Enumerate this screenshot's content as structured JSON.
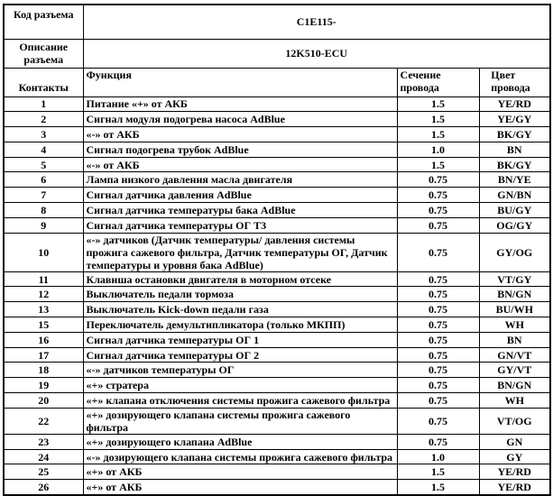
{
  "header": {
    "code_label": "Код разъема",
    "code_value": "C1E115-",
    "desc_label": "Описание разъема",
    "desc_value": "12K510-ECU",
    "contacts_label": "Контакты",
    "col_function": "Функция",
    "col_section": "Сечение провода",
    "col_color": "Цвет провода"
  },
  "rows": [
    {
      "pin": "1",
      "function": "Питание «+» от АКБ",
      "section": "1.5",
      "color": "YE/RD"
    },
    {
      "pin": "2",
      "function": "Сигнал модуля подогрева насоса AdBlue",
      "section": "1.5",
      "color": "YE/GY"
    },
    {
      "pin": "3",
      "function": "«-» от АКБ",
      "section": "1.5",
      "color": "BK/GY"
    },
    {
      "pin": "4",
      "function": "Сигнал подогрева трубок AdBlue",
      "section": "1.0",
      "color": "BN"
    },
    {
      "pin": "5",
      "function": "«-» от АКБ",
      "section": "1.5",
      "color": "BK/GY"
    },
    {
      "pin": "6",
      "function": "Лампа низкого давления масла двигателя",
      "section": "0.75",
      "color": "BN/YE"
    },
    {
      "pin": "7",
      "function": "Сигнал датчика давления AdBlue",
      "section": "0.75",
      "color": "GN/BN"
    },
    {
      "pin": "8",
      "function": "Сигнал датчика температуры бака AdBlue",
      "section": "0.75",
      "color": "BU/GY"
    },
    {
      "pin": "9",
      "function": "Сигнал датчика температуры ОГ Т3",
      "section": "0.75",
      "color": "OG/GY"
    },
    {
      "pin": "10",
      "function": "«-» датчиков (Датчик температуры/ давления системы прожига сажевого фильтра, Датчик температуры ОГ, Датчик температуры и уровня бака AdBlue)",
      "section": "0.75",
      "color": "GY/OG"
    },
    {
      "pin": "11",
      "function": "Клавиша остановки двигателя в моторном отсеке",
      "section": "0.75",
      "color": "VT/GY"
    },
    {
      "pin": "12",
      "function": "Выключатель педали тормоза",
      "section": "0.75",
      "color": "BN/GN"
    },
    {
      "pin": "13",
      "function": "Выключатель Kick-down педали газа",
      "section": "0.75",
      "color": "BU/WH"
    },
    {
      "pin": "15",
      "function": "Переключатель демультипликатора (только МКПП)",
      "section": "0.75",
      "color": "WH"
    },
    {
      "pin": "16",
      "function": "Сигнал датчика температуры ОГ 1",
      "section": "0.75",
      "color": "BN"
    },
    {
      "pin": "17",
      "function": "Сигнал датчика температуры ОГ 2",
      "section": "0.75",
      "color": "GN/VT"
    },
    {
      "pin": "18",
      "function": "«-» датчиков температуры ОГ",
      "section": "0.75",
      "color": "GY/VT"
    },
    {
      "pin": "19",
      "function": "«+» стратера",
      "section": "0.75",
      "color": "BN/GN"
    },
    {
      "pin": "20",
      "function": "«+» клапана отключения системы прожига сажевого фильтра",
      "section": "0.75",
      "color": "WH"
    },
    {
      "pin": "22",
      "function": "«+» дозирующего клапана системы прожига сажевого фильтра",
      "section": "0.75",
      "color": "VT/OG"
    },
    {
      "pin": "23",
      "function": "«+» дозирующего клапана AdBlue",
      "section": "0.75",
      "color": "GN"
    },
    {
      "pin": "24",
      "function": "«-» дозирующего клапана системы прожига сажевого фильтра",
      "section": "1.0",
      "color": "GY"
    },
    {
      "pin": "25",
      "function": "«+» от АКБ",
      "section": "1.5",
      "color": "YE/RD"
    },
    {
      "pin": "26",
      "function": "«+» от АКБ",
      "section": "1.5",
      "color": "YE/RD"
    }
  ]
}
